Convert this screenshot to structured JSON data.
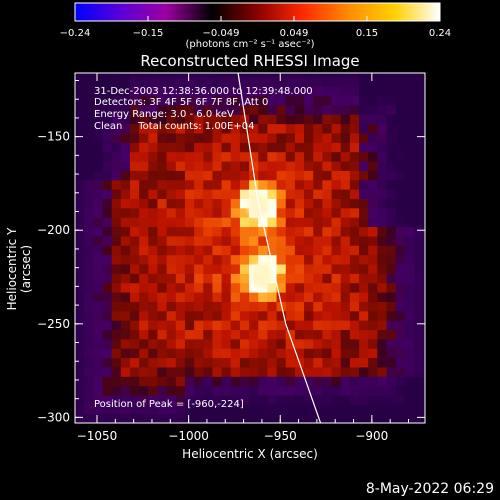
{
  "colorbar": {
    "min": -0.24,
    "max": 0.24,
    "tick_labels": [
      "-0.24",
      "-0.15",
      "-0.049",
      "0.049",
      "0.15",
      "0.24"
    ],
    "units_label": "(photons cm⁻² s⁻¹ asec⁻²)",
    "colormap": [
      "#0000ff",
      "#5a00d8",
      "#9c00a0",
      "#000000",
      "#8b0000",
      "#ff2a00",
      "#ff8c00",
      "#ffd000",
      "#ffffff"
    ]
  },
  "title": "Reconstructed RHESSI Image",
  "info_lines": [
    "31-Dec-2003 12:38:36.000 to 12:39:48.000",
    "Detectors: 3F 4F 5F 6F 7F 8F, Att 0",
    "Energy Range: 3.0 - 6.0 keV",
    "Clean     Total counts: 1.00E+04"
  ],
  "peak_text": "Position of Peak = [-960,-224]",
  "footer_date": "8-May-2022 06:29",
  "chart_data": {
    "type": "heatmap",
    "title": "Reconstructed RHESSI Image",
    "xlabel": "Heliocentric X (arcsec)",
    "ylabel": "Heliocentric Y (arcsec)",
    "xlim": [
      -1062,
      -871
    ],
    "ylim": [
      -303,
      -116
    ],
    "x_ticks": [
      -1050,
      -1000,
      -950,
      -900
    ],
    "y_ticks": [
      -150,
      -200,
      -250,
      -300
    ],
    "x_tick_labels": [
      "−1050",
      "−1000",
      "−950",
      "−900"
    ],
    "y_tick_labels": [
      "−150",
      "−200",
      "−250",
      "−300"
    ],
    "peak_position": [
      -960,
      -224
    ],
    "sources": [
      {
        "x": -962,
        "y": -187,
        "intensity": 0.22
      },
      {
        "x": -960,
        "y": -224,
        "intensity": 0.24
      }
    ],
    "limb_curve": [
      {
        "x": -973,
        "y": -116
      },
      {
        "x": -962,
        "y": -185
      },
      {
        "x": -947,
        "y": -250
      },
      {
        "x": -928,
        "y": -303
      }
    ]
  }
}
